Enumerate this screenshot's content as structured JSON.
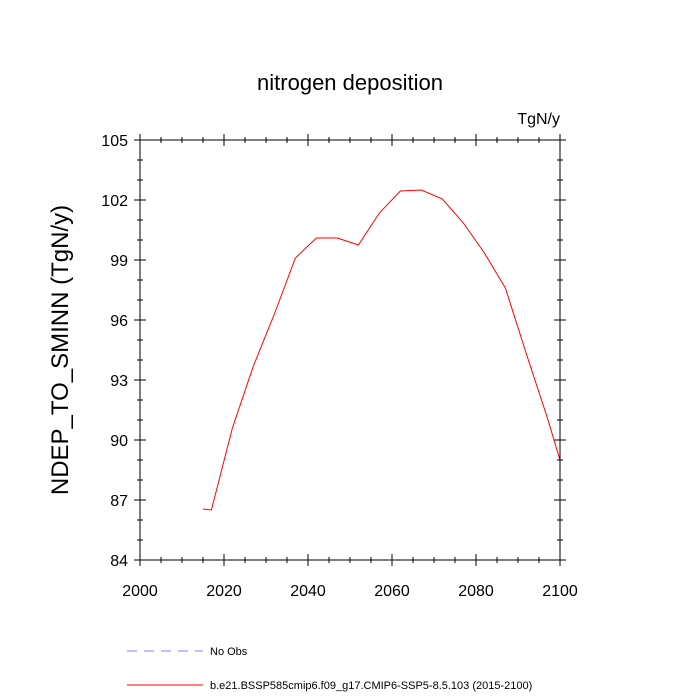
{
  "chart_data": {
    "type": "line",
    "title": "nitrogen deposition",
    "units": "TgN/y",
    "xlabel": "",
    "ylabel": "NDEP_TO_SMINN  (TgN/y)",
    "xlim": [
      2000,
      2100
    ],
    "ylim": [
      84,
      105
    ],
    "xticks": [
      "2000",
      "2020",
      "2040",
      "2060",
      "2080",
      "2100"
    ],
    "yticks": [
      "84",
      "87",
      "90",
      "93",
      "96",
      "99",
      "102",
      "105"
    ],
    "grid": false,
    "series": [
      {
        "name": "b.e21.BSSP585cmip6.f09_g17.CMIP6-SSP5-8.5.103 (2015-2100)",
        "color": "#ff0000",
        "x": [
          2015,
          2017,
          2022,
          2027,
          2032,
          2037,
          2042,
          2047,
          2052,
          2057,
          2062,
          2067,
          2072,
          2077,
          2082,
          2087,
          2092,
          2097,
          2100
        ],
        "y": [
          86.55,
          86.5,
          90.6,
          93.7,
          96.3,
          99.1,
          100.1,
          100.1,
          99.75,
          101.35,
          102.45,
          102.5,
          102.05,
          100.85,
          99.35,
          97.6,
          94.3,
          91.1,
          89.0
        ]
      }
    ],
    "legend": [
      {
        "label": "No Obs",
        "color": "#8080ff",
        "style": "dashed"
      },
      {
        "label": "b.e21.BSSP585cmip6.f09_g17.CMIP6-SSP5-8.5.103 (2015-2100)",
        "color": "#ff0000",
        "style": "solid"
      }
    ]
  }
}
